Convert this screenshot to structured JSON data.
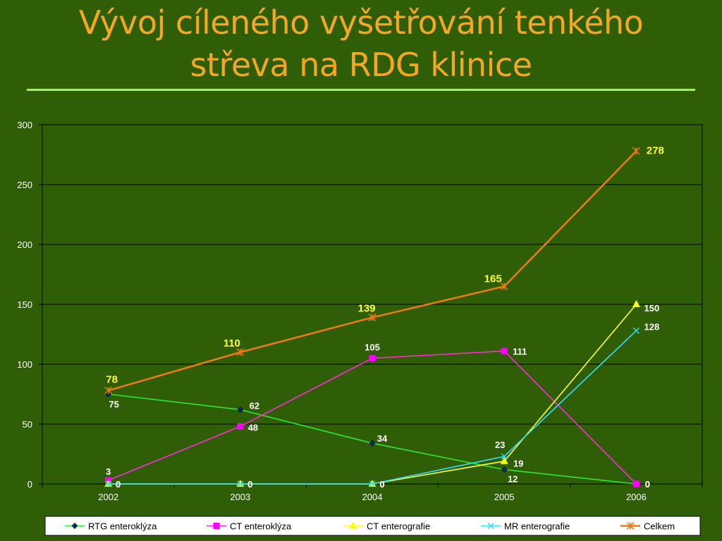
{
  "slide": {
    "title_line1": "Vývoj cíleného vyšetřování tenkého",
    "title_line2": "střeva na RDG klinice"
  },
  "colors": {
    "background": "#2f5e07",
    "title": "#f5a623",
    "rule": "#a6f06b"
  },
  "chart_data": {
    "type": "line",
    "categories": [
      "2002",
      "2003",
      "2004",
      "2005",
      "2006"
    ],
    "ylim": [
      0,
      300
    ],
    "yticks": [
      0,
      50,
      100,
      150,
      200,
      250,
      300
    ],
    "grid": true,
    "legend_position": "bottom",
    "series": [
      {
        "name": "RTG enteroklýza",
        "values": [
          75,
          62,
          34,
          12,
          0
        ],
        "color": "#2ee82e",
        "marker": "diamond",
        "marker_color": "#0a2a6e",
        "labels": [
          "75",
          "62",
          "34",
          "12",
          "0"
        ]
      },
      {
        "name": "CT enteroklýza",
        "values": [
          3,
          48,
          105,
          111,
          0
        ],
        "color": "#ff2bd6",
        "marker": "square",
        "marker_color": "#ff00ff",
        "labels": [
          "3",
          "48",
          "105",
          "111",
          "0"
        ]
      },
      {
        "name": "CT enterografie",
        "values": [
          0,
          0,
          0,
          19,
          150
        ],
        "color": "#ffff33",
        "marker": "triangle",
        "marker_color": "#ffff00",
        "labels": [
          "0",
          "0",
          "0",
          "19",
          "150"
        ]
      },
      {
        "name": "MR enterografie",
        "values": [
          0,
          0,
          0,
          23,
          128
        ],
        "color": "#33e0ff",
        "marker": "x",
        "marker_color": "#33e0ff",
        "labels": [
          "0",
          "0",
          "0",
          "23",
          "128"
        ]
      },
      {
        "name": "Celkem",
        "values": [
          78,
          110,
          139,
          165,
          278
        ],
        "color": "#f07a10",
        "marker": "star",
        "marker_color": "#f07a10",
        "labels": [
          "78",
          "110",
          "139",
          "165",
          "278"
        ]
      }
    ]
  }
}
